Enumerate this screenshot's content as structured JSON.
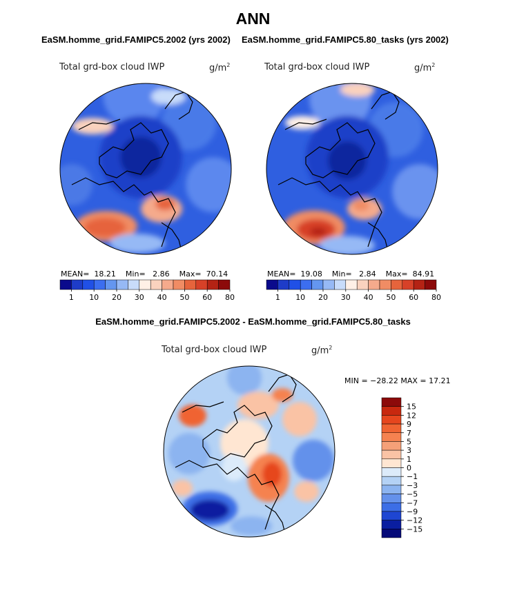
{
  "title": "ANN",
  "panels": [
    {
      "case_title": "EaSM.homme_grid.FAMIPC5.2002 (yrs 2002)",
      "variable": "Total grd-box cloud IWP",
      "units_base": "g/m",
      "units_exp": "2",
      "stats": {
        "mean_label": "MEAN=",
        "mean": "18.21",
        "min_label": "Min=",
        "min": "2.86",
        "max_label": "Max=",
        "max": "70.14"
      }
    },
    {
      "case_title": "EaSM.homme_grid.FAMIPC5.80_tasks (yrs 2002)",
      "variable": "Total grd-box cloud IWP",
      "units_base": "g/m",
      "units_exp": "2",
      "stats": {
        "mean_label": "MEAN=",
        "mean": "19.08",
        "min_label": "Min=",
        "min": "2.84",
        "max_label": "Max=",
        "max": "84.91"
      }
    }
  ],
  "diff": {
    "title": "EaSM.homme_grid.FAMIPC5.2002 - EaSM.homme_grid.FAMIPC5.80_tasks",
    "variable": "Total grd-box cloud IWP",
    "units_base": "g/m",
    "units_exp": "2",
    "stats_text": "MIN = −28.22  MAX =  17.21"
  },
  "chart_data": [
    {
      "type": "heatmap",
      "projection": "north polar stereographic",
      "title": "EaSM.homme_grid.FAMIPC5.2002 (yrs 2002)",
      "variable": "Total grd-box cloud IWP",
      "units": "g/m^2",
      "mean": 18.21,
      "min": 2.86,
      "max": 70.14,
      "colorbar_ticks": [
        "1",
        "10",
        "20",
        "30",
        "40",
        "50",
        "60",
        "80"
      ],
      "colorbar_colors": [
        "#0a0a8c",
        "#1e3cc8",
        "#2050e6",
        "#3c6ef0",
        "#6496f0",
        "#96b9f5",
        "#c8dcfa",
        "#fff0e6",
        "#fad2be",
        "#f5aa8c",
        "#f08c64",
        "#e6643c",
        "#d74128",
        "#b42314",
        "#8c0a0a"
      ]
    },
    {
      "type": "heatmap",
      "projection": "north polar stereographic",
      "title": "EaSM.homme_grid.FAMIPC5.80_tasks (yrs 2002)",
      "variable": "Total grd-box cloud IWP",
      "units": "g/m^2",
      "mean": 19.08,
      "min": 2.84,
      "max": 84.91,
      "colorbar_ticks": [
        "1",
        "10",
        "20",
        "30",
        "40",
        "50",
        "60",
        "80"
      ],
      "colorbar_colors": [
        "#0a0a8c",
        "#1e3cc8",
        "#2050e6",
        "#3c6ef0",
        "#6496f0",
        "#96b9f5",
        "#c8dcfa",
        "#fff0e6",
        "#fad2be",
        "#f5aa8c",
        "#f08c64",
        "#e6643c",
        "#d74128",
        "#b42314",
        "#8c0a0a"
      ]
    },
    {
      "type": "heatmap",
      "projection": "north polar stereographic",
      "title": "EaSM.homme_grid.FAMIPC5.2002 - EaSM.homme_grid.FAMIPC5.80_tasks",
      "variable": "Total grd-box cloud IWP",
      "units": "g/m^2",
      "min": -28.22,
      "max": 17.21,
      "colorbar_ticks": [
        "15",
        "12",
        "9",
        "7",
        "5",
        "3",
        "1",
        "0",
        "−1",
        "−3",
        "−5",
        "−7",
        "−9",
        "−12",
        "−15"
      ],
      "colorbar_colors": [
        "#8c0a0a",
        "#c8280f",
        "#e6461e",
        "#f06432",
        "#f58250",
        "#f5a078",
        "#fac3a5",
        "#ffe6d2",
        "#dcebfa",
        "#b4d2f5",
        "#8cb4f0",
        "#6491eb",
        "#3c6ee6",
        "#1e46d2",
        "#0a1ea0",
        "#050a78"
      ]
    }
  ]
}
